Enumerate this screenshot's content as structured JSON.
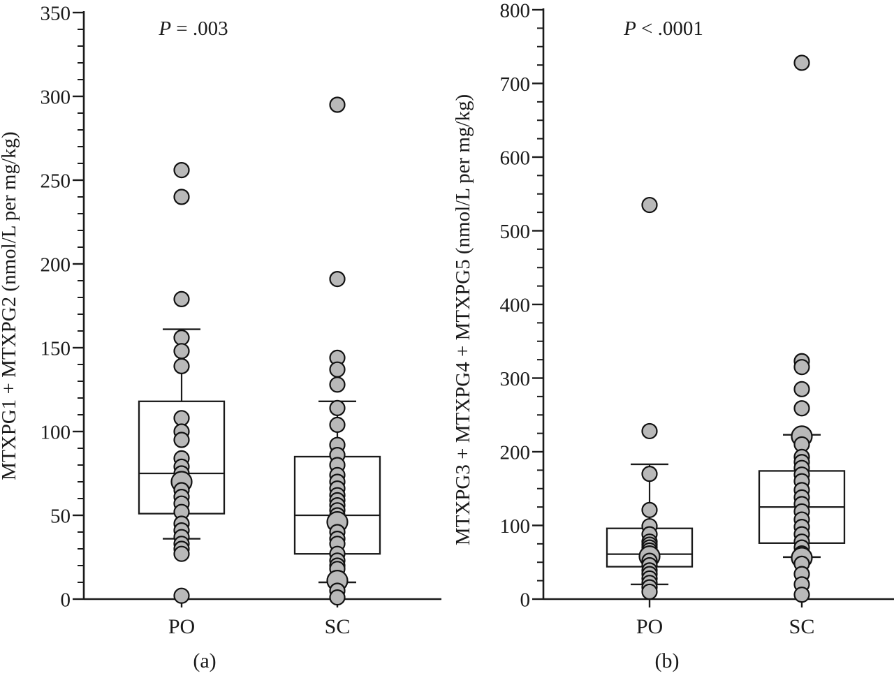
{
  "figure": {
    "background": "#ffffff",
    "dot_fill": "#b9b9b9",
    "dot_stroke": "#111111",
    "line_color": "#1a1a1a"
  },
  "chart_data": [
    {
      "type": "boxplot-scatter",
      "panel_label": "(a)",
      "p_annotation": "P = .003",
      "p_annotation_italic_part": "P",
      "p_annotation_rest": " = .003",
      "ylabel": "MTXPG1 + MTXPG2 (nmol/L per mg/kg)",
      "ylim": [
        0,
        350
      ],
      "yticks": [
        0,
        50,
        100,
        150,
        200,
        250,
        300,
        350
      ],
      "minor_tick_step": 10,
      "grid": "off",
      "legend": "none",
      "categories": [
        "PO",
        "SC"
      ],
      "boxes": [
        {
          "category": "PO",
          "whisker_low": 36,
          "q1": 51,
          "median": 75,
          "q3": 118,
          "whisker_high": 161
        },
        {
          "category": "SC",
          "whisker_low": 10,
          "q1": 27,
          "median": 50,
          "q3": 85,
          "whisker_high": 118
        }
      ],
      "points": [
        {
          "category": "PO",
          "values": [
            256,
            240,
            179,
            156,
            148,
            139,
            108,
            100,
            95,
            84,
            79,
            75,
            70,
            65,
            61,
            57,
            52,
            45,
            41,
            37,
            33,
            30,
            27,
            2
          ],
          "large_values": [
            70
          ]
        },
        {
          "category": "SC",
          "values": [
            295,
            191,
            144,
            137,
            128,
            114,
            104,
            92,
            86,
            80,
            74,
            70,
            66,
            62,
            59,
            56,
            53,
            50,
            46,
            40,
            36,
            33,
            27,
            23,
            20,
            18,
            11,
            5,
            1
          ],
          "large_values": [
            46,
            11
          ]
        }
      ]
    },
    {
      "type": "boxplot-scatter",
      "panel_label": "(b)",
      "p_annotation": "P < .0001",
      "p_annotation_italic_part": "P",
      "p_annotation_rest": " < .0001",
      "ylabel": "MTXPG3 + MTXPG4 + MTXPG5 (nmol/L per mg/kg)",
      "ylim": [
        0,
        800
      ],
      "yticks": [
        0,
        100,
        200,
        300,
        400,
        500,
        600,
        700,
        800
      ],
      "minor_tick_step": 25,
      "grid": "off",
      "legend": "none",
      "categories": [
        "PO",
        "SC"
      ],
      "boxes": [
        {
          "category": "PO",
          "whisker_low": 20,
          "q1": 44,
          "median": 61,
          "q3": 96,
          "whisker_high": 183
        },
        {
          "category": "SC",
          "whisker_low": 57,
          "q1": 76,
          "median": 125,
          "q3": 174,
          "whisker_high": 223
        }
      ],
      "points": [
        {
          "category": "PO",
          "values": [
            535,
            228,
            170,
            121,
            99,
            88,
            78,
            74,
            70,
            66,
            62,
            58,
            52,
            46,
            39,
            34,
            28,
            22,
            16,
            10
          ],
          "large_values": [
            58
          ]
        },
        {
          "category": "SC",
          "values": [
            728,
            323,
            315,
            285,
            259,
            221,
            210,
            193,
            186,
            178,
            169,
            160,
            148,
            138,
            129,
            119,
            108,
            98,
            88,
            78,
            70,
            62,
            56,
            48,
            34,
            20,
            6
          ],
          "large_values": [
            221,
            56
          ]
        }
      ]
    }
  ]
}
